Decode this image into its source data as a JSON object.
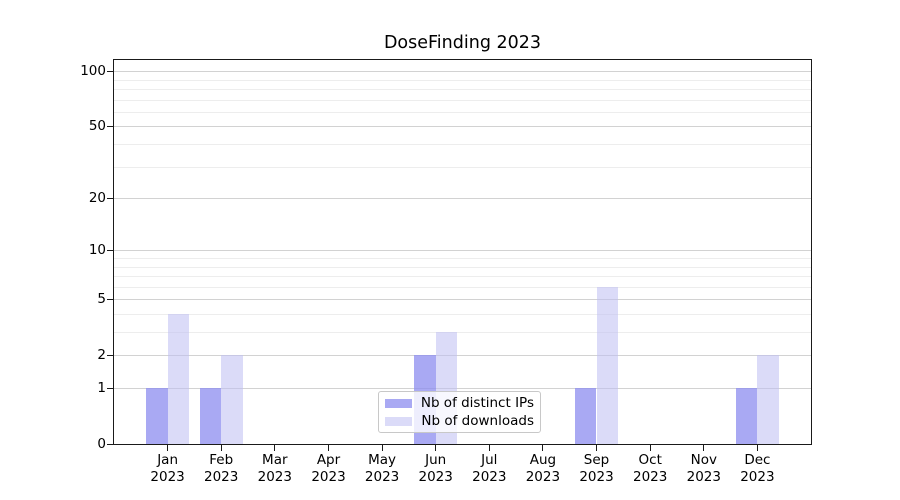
{
  "title": "DoseFinding 2023",
  "colors": {
    "distinct_ips_bar": "rgba(140,140,239,0.75)",
    "downloads_bar": "rgba(190,190,242,0.55)",
    "grid_major": "#d2d2d2",
    "grid_minor": "#ededed",
    "axis_line": "#1a1a1a",
    "legend_border": "#c8c8c8"
  },
  "y_axis": {
    "ticks": [
      {
        "label": "100",
        "value": 100
      },
      {
        "label": "50",
        "value": 50
      },
      {
        "label": "20",
        "value": 20
      },
      {
        "label": "10",
        "value": 10
      },
      {
        "label": "5",
        "value": 5
      },
      {
        "label": "2",
        "value": 2
      },
      {
        "label": "1",
        "value": 1
      },
      {
        "label": "0",
        "value": 0
      }
    ]
  },
  "x_axis": {
    "months": [
      "Jan",
      "Feb",
      "Mar",
      "Apr",
      "May",
      "Jun",
      "Jul",
      "Aug",
      "Sep",
      "Oct",
      "Nov",
      "Dec"
    ],
    "year": "2023"
  },
  "chart_data": {
    "type": "bar",
    "title": "DoseFinding 2023",
    "categories": [
      "Jan 2023",
      "Feb 2023",
      "Mar 2023",
      "Apr 2023",
      "May 2023",
      "Jun 2023",
      "Jul 2023",
      "Aug 2023",
      "Sep 2023",
      "Oct 2023",
      "Nov 2023",
      "Dec 2023"
    ],
    "series": [
      {
        "name": "Nb of distinct IPs",
        "color": "rgba(140,140,239,0.75)",
        "values": [
          1,
          1,
          0,
          0,
          0,
          2,
          0,
          0,
          1,
          0,
          0,
          1
        ]
      },
      {
        "name": "Nb of downloads",
        "color": "rgba(190,190,242,0.55)",
        "values": [
          4,
          2,
          0,
          0,
          0,
          3,
          0,
          0,
          6,
          0,
          0,
          2
        ]
      }
    ],
    "yscale": "log1p",
    "y_ticks": [
      0,
      1,
      2,
      5,
      10,
      20,
      50,
      100
    ],
    "y_minor_ticks": [
      3,
      4,
      6,
      7,
      8,
      9,
      30,
      40,
      60,
      70,
      80,
      90
    ],
    "ylim": [
      0,
      115
    ],
    "xlabel": "",
    "ylabel": "",
    "grid": true,
    "legend_position": "lower center"
  }
}
